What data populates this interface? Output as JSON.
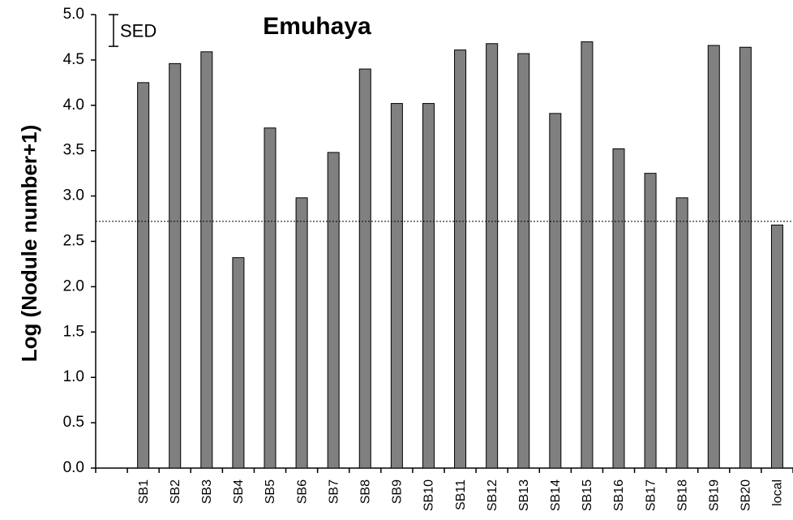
{
  "chart_data": {
    "type": "bar",
    "title": "Emuhaya",
    "ylabel": "Log (Nodule number+1)",
    "categories": [
      null,
      "SB1",
      "SB2",
      "SB3",
      "SB4",
      "SB5",
      "SB6",
      "SB7",
      "SB8",
      "SB9",
      "SB10",
      "SB11",
      "SB12",
      "SB13",
      "SB14",
      "SB15",
      "SB16",
      "SB17",
      "SB18",
      "SB19",
      "SB20",
      "local"
    ],
    "values": [
      null,
      4.25,
      4.46,
      4.59,
      2.32,
      3.75,
      2.98,
      3.48,
      4.4,
      4.02,
      4.02,
      4.61,
      4.68,
      4.57,
      3.91,
      4.7,
      3.52,
      3.25,
      2.98,
      4.66,
      4.64,
      2.68
    ],
    "color": "#808080",
    "ylim": [
      0,
      5
    ],
    "yticks": [
      {
        "value": 0,
        "label": "0.0"
      },
      0.5,
      {
        "value": 1,
        "label": "1.0"
      },
      1.5,
      {
        "value": 2,
        "label": "2.0"
      },
      2.5,
      {
        "value": 3,
        "label": "3.0"
      },
      3.5,
      {
        "value": 4,
        "label": "4.0"
      },
      4.5,
      {
        "value": 5,
        "label": "5.0"
      }
    ],
    "grid": false,
    "reference_line": 2.72,
    "sed": 0.35,
    "sed_label": "SED"
  }
}
